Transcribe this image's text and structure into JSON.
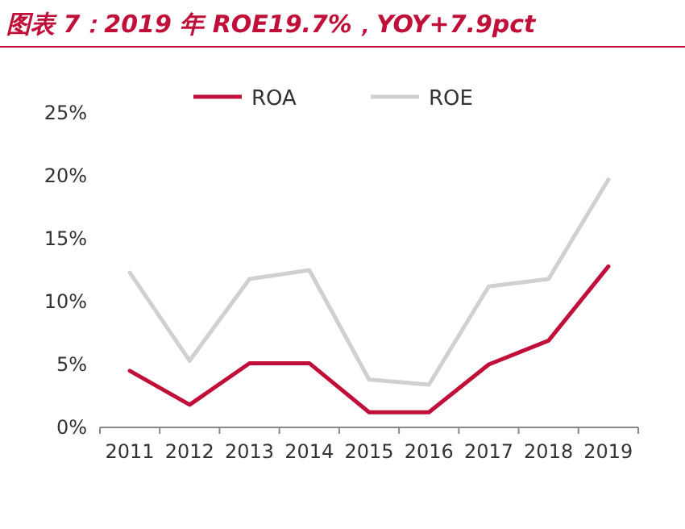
{
  "chart_data": {
    "type": "line",
    "title": "图表 7：2019 年 ROE19.7%，YOY+7.9pct",
    "categories": [
      "2011",
      "2012",
      "2013",
      "2014",
      "2015",
      "2016",
      "2017",
      "2018",
      "2019"
    ],
    "series": [
      {
        "name": "ROA",
        "color": "#c0103a",
        "values": [
          4.5,
          1.8,
          5.1,
          5.1,
          1.2,
          1.2,
          5.0,
          6.9,
          12.8
        ]
      },
      {
        "name": "ROE",
        "color": "#d0d0d0",
        "values": [
          12.3,
          5.3,
          11.8,
          12.5,
          3.8,
          3.4,
          11.2,
          11.8,
          19.7
        ]
      }
    ],
    "ylim": [
      0,
      25
    ],
    "yticks": [
      {
        "value": 0,
        "label": "0%"
      },
      {
        "value": 5,
        "label": "5%"
      },
      {
        "value": 10,
        "label": "10%"
      },
      {
        "value": 15,
        "label": "15%"
      },
      {
        "value": 20,
        "label": "20%"
      },
      {
        "value": 25,
        "label": "25%"
      }
    ],
    "grid": false,
    "legend": "top",
    "marker": "none",
    "line_style": "solid"
  }
}
